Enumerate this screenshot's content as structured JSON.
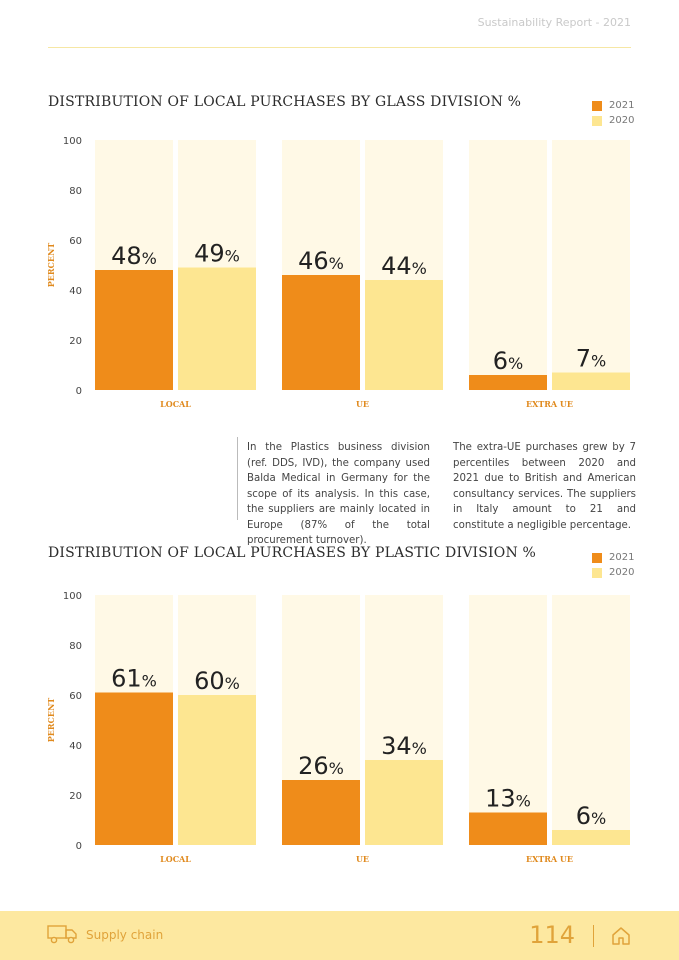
{
  "header": {
    "report_title": "Sustainability Report - 2021"
  },
  "legend": {
    "label_2021": "2021",
    "label_2020": "2020"
  },
  "colors": {
    "series_2021": "#ef8c1a",
    "series_2020": "#fde691",
    "track": "#fff9e6",
    "accent_label": "#e08a1e",
    "footer_bg": "#fde8a0"
  },
  "chart_data": [
    {
      "type": "bar",
      "title": "DISTRIBUTION OF LOCAL PURCHASES BY GLASS DIVISION %",
      "xlabel": "",
      "ylabel": "PERCENT",
      "ylim": [
        0,
        100
      ],
      "yticks": [
        "0",
        "20",
        "40",
        "60",
        "80",
        "100"
      ],
      "categories": [
        "LOCAL",
        "UE",
        "EXTRA UE"
      ],
      "series": [
        {
          "name": "2021",
          "values": [
            48,
            46,
            6
          ]
        },
        {
          "name": "2020",
          "values": [
            49,
            44,
            7
          ]
        }
      ],
      "data_labels": [
        [
          "48",
          "46",
          "6"
        ],
        [
          "49",
          "44",
          "7"
        ]
      ],
      "label_suffix": "%"
    },
    {
      "type": "bar",
      "title": "DISTRIBUTION OF LOCAL PURCHASES BY PLASTIC DIVISION %",
      "xlabel": "",
      "ylabel": "PERCENT",
      "ylim": [
        0,
        100
      ],
      "yticks": [
        "0",
        "20",
        "40",
        "60",
        "80",
        "100"
      ],
      "categories": [
        "LOCAL",
        "UE",
        "EXTRA UE"
      ],
      "series": [
        {
          "name": "2021",
          "values": [
            61,
            26,
            13
          ]
        },
        {
          "name": "2020",
          "values": [
            60,
            34,
            6
          ]
        }
      ],
      "data_labels": [
        [
          "61",
          "26",
          "13"
        ],
        [
          "60",
          "34",
          "6"
        ]
      ],
      "label_suffix": "%"
    }
  ],
  "body_text": {
    "left_paragraph": "In the Plastics business division (ref. DDS, IVD), the company used Balda Medical in Germany for the scope of its analysis. In this case, the suppliers are mainly located in Europe (87% of the total procurement turnover).",
    "right_paragraph": "The extra-UE purchases grew by 7 percentiles between 2020 and 2021 due to British and American consultancy services. The suppliers in Italy amount to 21 and constitute a negligible percentage."
  },
  "footer": {
    "section": "Supply chain",
    "page_number": "114",
    "truck_icon": "truck-icon",
    "home_icon": "home-icon"
  }
}
